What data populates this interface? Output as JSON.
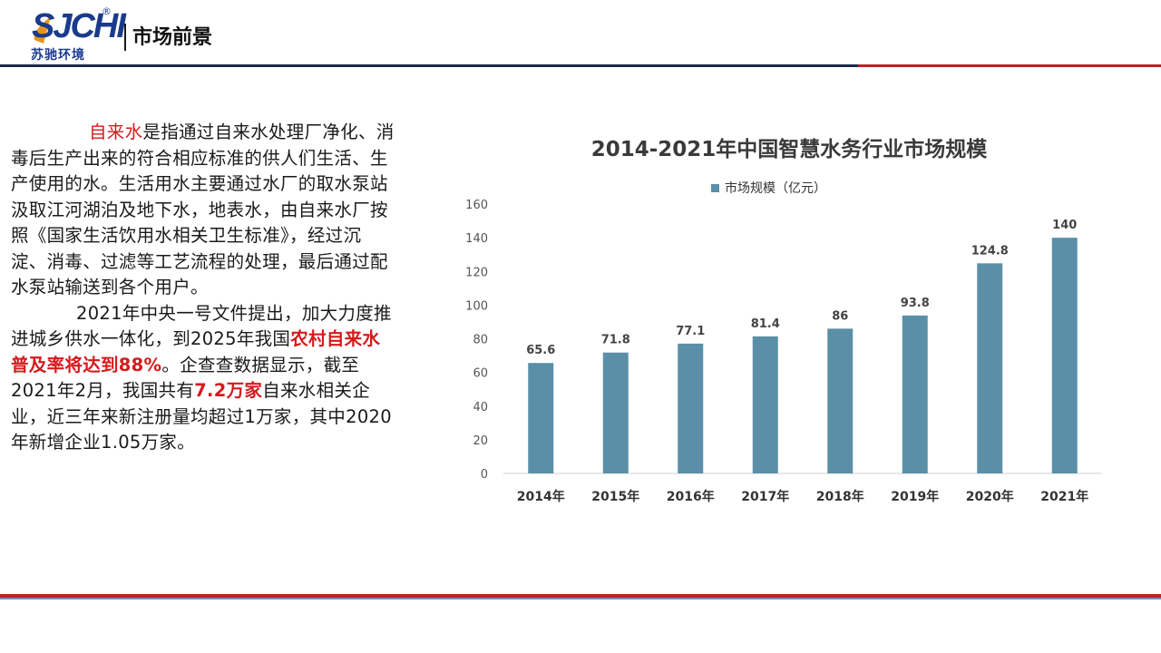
{
  "header": {
    "logo_text": "SJCHI",
    "logo_reg": "®",
    "logo_sub": "苏驰环境",
    "title": "市场前景"
  },
  "content": {
    "p1_highlight": "自来水",
    "p1_rest": "是指通过自来水处理厂净化、消毒后生产出来的符合相应标准的供人们生活、生产使用的水。生活用水主要通过水厂的取水泵站汲取江河湖泊及地下水，地表水，由自来水厂按照《国家生活饮用水相关卫生标准》，经过沉淀、消毒、过滤等工艺流程的处理，最后通过配水泵站输送到各个用户。",
    "p2_a": "2021年中央一号文件提出，加大力度推进城乡供水一体化，到2025年我国",
    "p2_highlight1": "农村自来水普及率将达到88%",
    "p2_b": "。企查查数据显示，截至2021年2月，我国共有",
    "p2_highlight2": "7.2万家",
    "p2_c": "自来水相关企业，近三年来新注册量均超过1万家，其中2020年新增企业1.05万家。"
  },
  "chart_data": {
    "type": "bar",
    "title": "2014-2021年中国智慧水务行业市场规模",
    "legend": "市场规模（亿元）",
    "categories": [
      "2014年",
      "2015年",
      "2016年",
      "2017年",
      "2018年",
      "2019年",
      "2020年",
      "2021年"
    ],
    "series": [
      {
        "name": "市场规模（亿元）",
        "values": [
          65.6,
          71.8,
          77.1,
          81.4,
          86,
          93.8,
          124.8,
          140
        ]
      }
    ],
    "value_labels": [
      "65.6",
      "71.8",
      "77.1",
      "81.4",
      "86",
      "93.8",
      "124.8",
      "140"
    ],
    "ylim": [
      0,
      160
    ],
    "yticks": [
      "0",
      "20",
      "40",
      "60",
      "80",
      "100",
      "120",
      "140",
      "160"
    ],
    "grid": false,
    "legend_position": "top-center",
    "bar_color": "#5b8fa8"
  },
  "colors": {
    "accent_red": "#d7191c",
    "navy": "#1b2a4a",
    "brand_blue": "#1a3a8c"
  }
}
